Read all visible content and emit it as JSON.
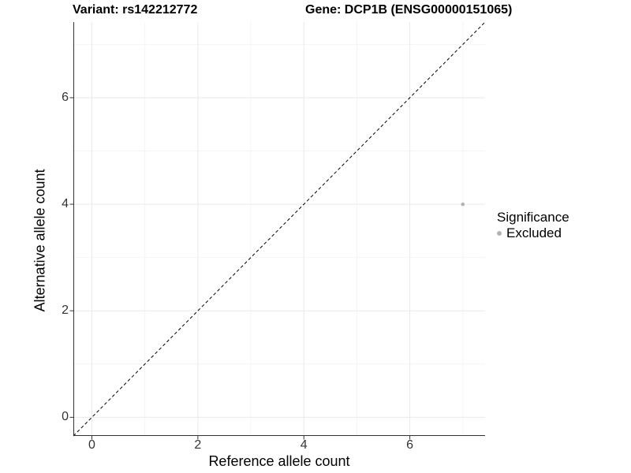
{
  "titles": {
    "variant": "Variant: rs142212772",
    "gene": "Gene: DCP1B (ENSG00000151065)"
  },
  "chart_data": {
    "type": "scatter",
    "title": "Variant: rs142212772   Gene: DCP1B (ENSG00000151065)",
    "xlabel": "Reference allele count",
    "ylabel": "Alternative allele count",
    "xlim": [
      -0.35,
      7.42
    ],
    "ylim": [
      -0.35,
      7.42
    ],
    "x_ticks": [
      0,
      2,
      4,
      6
    ],
    "y_ticks": [
      0,
      2,
      4,
      6
    ],
    "x_minor_ticks": [
      1,
      3,
      5,
      7
    ],
    "y_minor_ticks": [
      1,
      3,
      5,
      7
    ],
    "grid": true,
    "series": [
      {
        "name": "Excluded",
        "color": "#b3b3b3",
        "points": [
          {
            "x": 7,
            "y": 4
          }
        ]
      }
    ],
    "reference_line": {
      "equation": "y = x",
      "style": "dashed",
      "color": "#000000",
      "from": [
        -0.35,
        -0.35
      ],
      "to": [
        7.42,
        7.42
      ]
    },
    "legend": {
      "title": "Significance",
      "position": "right",
      "entries": [
        {
          "label": "Excluded",
          "color": "#b3b3b3"
        }
      ]
    }
  },
  "colors": {
    "axis_line": "#333333",
    "tick_mark": "#333333",
    "grid_major": "#e9e9e9",
    "grid_minor": "#f4f4f4",
    "background": "#ffffff"
  }
}
